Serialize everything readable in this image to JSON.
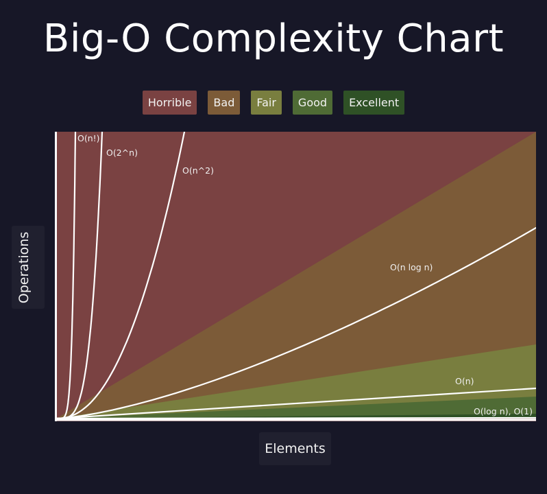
{
  "title": "Big-O Complexity Chart",
  "legend": [
    {
      "label": "Horrible",
      "color": "#7a4242"
    },
    {
      "label": "Bad",
      "color": "#7c5b38"
    },
    {
      "label": "Fair",
      "color": "#797e3f"
    },
    {
      "label": "Good",
      "color": "#4f6b35"
    },
    {
      "label": "Excellent",
      "color": "#2f5126"
    }
  ],
  "chart_data": {
    "type": "line",
    "xlabel": "Elements",
    "ylabel": "Operations",
    "xlim": [
      0,
      100
    ],
    "ylim": [
      0,
      100
    ],
    "regions": [
      {
        "name": "Horrible",
        "color": "#7a4242"
      },
      {
        "name": "Bad",
        "color": "#7c5b38"
      },
      {
        "name": "Fair",
        "color": "#797e3f"
      },
      {
        "name": "Good",
        "color": "#4f6b35"
      },
      {
        "name": "Excellent",
        "color": "#2f5126"
      }
    ],
    "series": [
      {
        "name": "O(n!)"
      },
      {
        "name": "O(2^n)"
      },
      {
        "name": "O(n^2)"
      },
      {
        "name": "O(n log n)"
      },
      {
        "name": "O(n)"
      },
      {
        "name": "O(log n), O(1)"
      }
    ],
    "line_color": "#ffffff"
  }
}
